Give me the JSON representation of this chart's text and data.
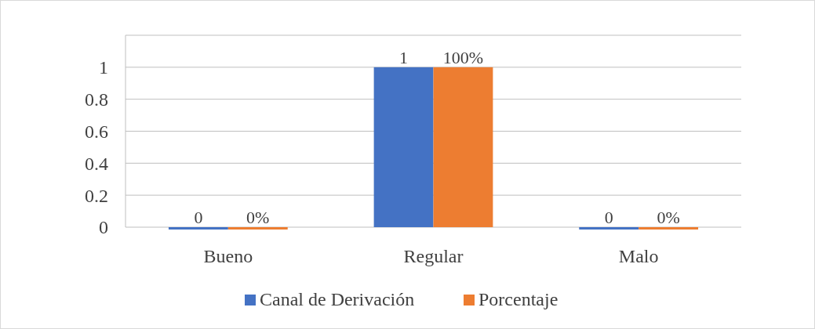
{
  "chart_data": {
    "type": "bar",
    "categories": [
      "Bueno",
      "Regular",
      "Malo"
    ],
    "series": [
      {
        "name": "Canal de Derivación",
        "color": "#4472c4",
        "values": [
          0,
          1,
          0
        ],
        "value_labels": [
          "0",
          "1",
          "0"
        ]
      },
      {
        "name": "Porcentaje",
        "color": "#ed7d31",
        "values": [
          0,
          1,
          0
        ],
        "value_labels": [
          "0%",
          "100%",
          "0%"
        ]
      }
    ],
    "ylim": [
      0,
      1.2
    ],
    "yticks": [
      0,
      0.2,
      0.4,
      0.6,
      0.8,
      1,
      {
        "value": 1.2,
        "label": null
      }
    ],
    "grid": "y",
    "legend": "bottom"
  }
}
